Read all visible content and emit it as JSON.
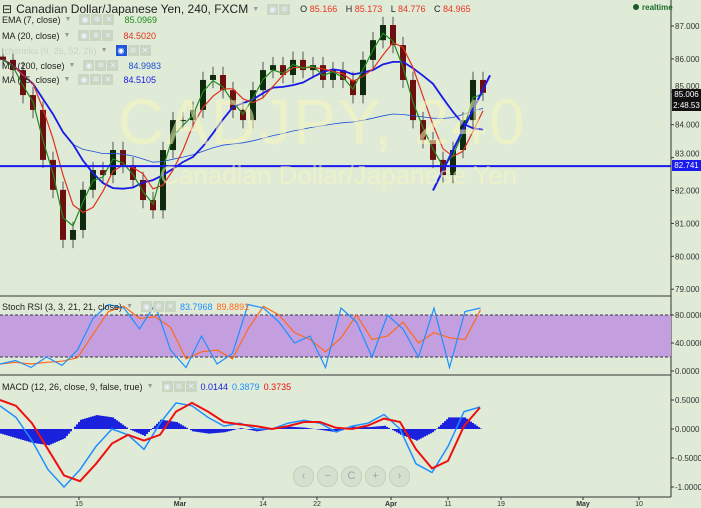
{
  "header": {
    "title": "Canadian Dollar/Japanese Yen, 240, FXCM",
    "ohlc": [
      {
        "label": "O",
        "value": "85.166"
      },
      {
        "label": "H",
        "value": "85.173"
      },
      {
        "label": "L",
        "value": "84.776"
      },
      {
        "label": "C",
        "value": "84.965"
      }
    ],
    "realtime": "realtime"
  },
  "watermark": {
    "symbol": "CADJPY, 240",
    "name": "Canadian Dollar/Japanese Yen"
  },
  "indicators": [
    {
      "label": "EMA (7, close)",
      "value": "85.0969",
      "color": "#1f8a1f"
    },
    {
      "label": "MA (20, close)",
      "value": "84.5020",
      "color": "#e0301e"
    },
    {
      "label": "Ichimoku (9, 26, 52, 26)",
      "value": "",
      "color": "#c8d4c0"
    },
    {
      "label": "MA (200, close)",
      "value": "84.9983",
      "color": "#1e4fd8"
    },
    {
      "label": "MA (55, close)",
      "value": "84.5105",
      "color": "#1a1ae6"
    }
  ],
  "stoch_legend": {
    "label": "Stoch RSI (3, 3, 21, 21, close)",
    "k": "83.7968",
    "d": "89.8891"
  },
  "macd_legend": {
    "label": "MACD (12, 26, close, 9, false, true)",
    "hist": "0.0144",
    "macd": "0.3879",
    "signal": "0.3735"
  },
  "price_boxes": {
    "last": "85.006",
    "countdown": "2:48.53",
    "hline": "82.741"
  },
  "nav_buttons": [
    "‹",
    "−",
    "C",
    "+",
    "›"
  ],
  "colors": {
    "background": "#dfebd6",
    "up_candle": "#0f2a0f",
    "down_candle": "#6b0f0f",
    "stoch_band": "#c49fe0",
    "k": "#1e8fff",
    "d": "#ff6a1a",
    "macd": "#1e8fff",
    "signal": "#ee1111",
    "hist": "#1a22dd",
    "hline": "#1a1aee"
  },
  "chart_data": [
    {
      "type": "candlestick",
      "title": "Canadian Dollar/Japanese Yen, 240, FXCM",
      "x_ticks": [
        "15",
        "Mar",
        "14",
        "22",
        "Apr",
        "11",
        "19",
        "May",
        "10"
      ],
      "y_ticks": [
        "87.000",
        "86.000",
        "85.000",
        "84.000",
        "83.000",
        "82.000",
        "81.000",
        "80.000",
        "79.000"
      ],
      "ylim": [
        79,
        87
      ],
      "close": [
        85.97,
        85.66,
        84.9,
        84.45,
        82.93,
        82.02,
        80.5,
        80.8,
        82.02,
        82.62,
        82.47,
        83.23,
        82.77,
        82.32,
        81.71,
        81.4,
        83.23,
        84.14,
        84.14,
        84.45,
        85.36,
        85.51,
        85.05,
        84.45,
        84.14,
        85.05,
        85.66,
        85.81,
        85.51,
        85.97,
        85.66,
        85.81,
        85.36,
        85.66,
        85.36,
        84.9,
        85.97,
        86.57,
        87.03,
        86.42,
        85.36,
        84.14,
        83.53,
        82.93,
        82.47,
        83.23,
        84.14,
        85.36,
        84.97
      ],
      "horizontal_line": 82.741,
      "trend_line": [
        [
          82.0,
          0
        ],
        [
          85.5,
          1
        ]
      ]
    },
    {
      "type": "line",
      "title": "Stoch RSI (3, 3, 21, 21, close)",
      "y_ticks": [
        "80.0000",
        "40.0000",
        "0.0000"
      ],
      "ylim": [
        0,
        100
      ],
      "band": [
        20,
        80
      ],
      "k": [
        10,
        15,
        5,
        20,
        8,
        30,
        75,
        95,
        90,
        60,
        95,
        30,
        5,
        50,
        10,
        25,
        95,
        90,
        70,
        40,
        50,
        5,
        90,
        70,
        20,
        80,
        60,
        20,
        90,
        5,
        85,
        90
      ]
    },
    {
      "type": "line",
      "title": "MACD (12, 26, close, 9, false, true)",
      "y_ticks": [
        "0.5000",
        "0.0000",
        "-0.5000",
        "-1.0000"
      ],
      "ylim": [
        -1.1,
        0.6
      ],
      "macd": [
        0.4,
        0.2,
        -0.2,
        -0.7,
        -1.0,
        -0.7,
        -0.3,
        0.0,
        -0.1,
        -0.35,
        0.1,
        0.45,
        0.4,
        0.2,
        0.05,
        0.1,
        0.0,
        0.0,
        0.1,
        0.15,
        0.1,
        -0.05,
        0.05,
        0.1,
        0.25,
        0.0,
        -0.6,
        -0.75,
        -0.3,
        0.3,
        0.38
      ],
      "signal": [
        0.5,
        0.4,
        0.1,
        -0.35,
        -0.8,
        -0.9,
        -0.6,
        -0.25,
        -0.1,
        -0.2,
        -0.1,
        0.3,
        0.45,
        0.3,
        0.12,
        0.08,
        0.05,
        0.0,
        0.05,
        0.12,
        0.12,
        0.02,
        0.0,
        0.06,
        0.18,
        0.12,
        -0.35,
        -0.68,
        -0.55,
        0.05,
        0.37
      ]
    }
  ]
}
